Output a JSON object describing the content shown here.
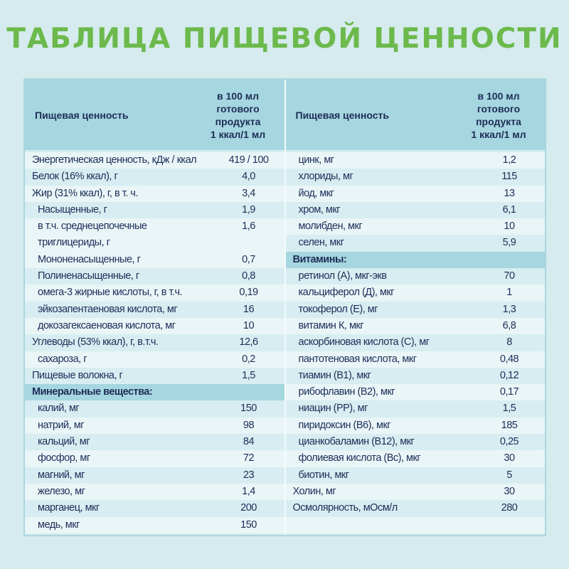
{
  "title": "ТАБЛИЦА ПИЩЕВОЙ ЦЕННОСТИ",
  "colors": {
    "title": "#6cb94c",
    "header": "#a6d6df",
    "text": "#1d2d58",
    "background": "#d5ebee"
  },
  "left": {
    "header": {
      "name": "Пищевая ценность",
      "value_lines": [
        "в 100 мл",
        "готового",
        "продукта",
        "1 ккал/1 мл"
      ]
    },
    "rows": [
      {
        "name": "Энергетическая ценность, кДж / ккал",
        "value": "419 / 100"
      },
      {
        "name": "Белок (16% ккал), г",
        "value": "4,0"
      },
      {
        "name": "Жир (31% ккал), г, в т. ч.",
        "value": "3,4"
      },
      {
        "name": "Насыщенные, г",
        "value": "1,9",
        "indent": true
      },
      {
        "name": "в т.ч. среднецепочечные триглицериды, г",
        "value": "1,6",
        "indent": true,
        "tall": true
      },
      {
        "name": "Мононенасыщенные, г",
        "value": "0,7",
        "indent": true
      },
      {
        "name": "Полиненасыщенные, г",
        "value": "0,8",
        "indent": true
      },
      {
        "name": "омега-3 жирные кислоты, г, в т.ч.",
        "value": "0,19",
        "indent": true
      },
      {
        "name": "эйкозапентаеновая кислота, мг",
        "value": "16",
        "indent": true
      },
      {
        "name": "докозагексаеновая кислота, мг",
        "value": "10",
        "indent": true
      },
      {
        "name": "Углеводы (53% ккал), г, в.т.ч.",
        "value": "12,6"
      },
      {
        "name": "сахароза, г",
        "value": "0,2",
        "indent": true
      },
      {
        "name": "Пищевые волокна, г",
        "value": "1,5"
      },
      {
        "name": "Минеральные вещества:",
        "value": "",
        "section": true
      },
      {
        "name": "калий, мг",
        "value": "150",
        "indent": true
      },
      {
        "name": "натрий, мг",
        "value": "98",
        "indent": true
      },
      {
        "name": "кальций, мг",
        "value": "84",
        "indent": true
      },
      {
        "name": "фосфор, мг",
        "value": "72",
        "indent": true
      },
      {
        "name": "магний, мг",
        "value": "23",
        "indent": true
      },
      {
        "name": "железо, мг",
        "value": "1,4",
        "indent": true
      },
      {
        "name": "марганец, мкг",
        "value": "200",
        "indent": true
      },
      {
        "name": "медь, мкг",
        "value": "150",
        "indent": true
      }
    ]
  },
  "right": {
    "header": {
      "name": "Пищевая ценность",
      "value_lines": [
        "в 100 мл",
        "готового",
        "продукта",
        "1 ккал/1 мл"
      ]
    },
    "rows": [
      {
        "name": "цинк, мг",
        "value": "1,2",
        "indent": true
      },
      {
        "name": "хлориды, мг",
        "value": "115",
        "indent": true
      },
      {
        "name": "йод, мкг",
        "value": "13",
        "indent": true
      },
      {
        "name": "хром, мкг",
        "value": "6,1",
        "indent": true
      },
      {
        "name": "молибден, мкг",
        "value": "10",
        "indent": true
      },
      {
        "name": "селен, мкг",
        "value": "5,9",
        "indent": true
      },
      {
        "name": "Витамины:",
        "value": "",
        "section": true
      },
      {
        "name": "ретинол (А), мкг-экв",
        "value": "70",
        "indent": true
      },
      {
        "name": "кальциферол (Д), мкг",
        "value": "1",
        "indent": true
      },
      {
        "name": "токоферол (Е), мг",
        "value": "1,3",
        "indent": true
      },
      {
        "name": "витамин К, мкг",
        "value": "6,8",
        "indent": true
      },
      {
        "name": "аскорбиновая кислота (С), мг",
        "value": "8",
        "indent": true
      },
      {
        "name": "пантотеновая кислота, мкг",
        "value": "0,48",
        "indent": true
      },
      {
        "name": "тиамин (В1), мкг",
        "value": "0,12",
        "indent": true
      },
      {
        "name": "рибофлавин (В2), мкг",
        "value": "0,17",
        "indent": true
      },
      {
        "name": "ниацин (РР), мг",
        "value": "1,5",
        "indent": true
      },
      {
        "name": "пиридоксин (В6), мкг",
        "value": "185",
        "indent": true
      },
      {
        "name": "цианкобаламин (В12), мкг",
        "value": "0,25",
        "indent": true
      },
      {
        "name": "фолиевая кислота (Вс), мкг",
        "value": "30",
        "indent": true
      },
      {
        "name": "биотин, мкг",
        "value": "5",
        "indent": true
      },
      {
        "name": "Холин, мг",
        "value": "30"
      },
      {
        "name": "Осмолярность, мОсм/л",
        "value": "280"
      },
      {
        "name": "",
        "value": ""
      }
    ]
  }
}
